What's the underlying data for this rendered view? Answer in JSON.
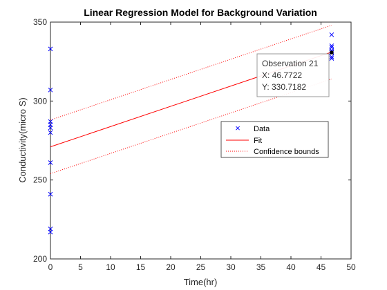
{
  "chart_data": {
    "type": "scatter",
    "title": "Linear Regression Model for Background Variation",
    "xlabel": "Time(hr)",
    "ylabel": "Conductivity(micro S)",
    "xlim": [
      0,
      50
    ],
    "ylim": [
      200,
      350
    ],
    "xticks": [
      0,
      5,
      10,
      15,
      20,
      25,
      30,
      35,
      40,
      45,
      50
    ],
    "yticks": [
      200,
      250,
      300,
      350
    ],
    "grid": false,
    "legend_position": "right-center",
    "series": [
      {
        "name": "Data",
        "marker": "x",
        "color": "#0000ff",
        "points": [
          [
            0,
            333
          ],
          [
            0,
            307
          ],
          [
            0,
            287
          ],
          [
            0,
            285
          ],
          [
            0,
            283
          ],
          [
            0,
            280
          ],
          [
            0,
            261
          ],
          [
            0,
            241
          ],
          [
            0,
            219
          ],
          [
            0,
            217
          ],
          [
            46.77,
            342
          ],
          [
            46.77,
            335
          ],
          [
            46.77,
            334
          ],
          [
            46.77,
            332
          ],
          [
            46.77,
            331
          ],
          [
            46.77,
            330.7182
          ],
          [
            46.77,
            328
          ],
          [
            46.77,
            327
          ]
        ]
      },
      {
        "name": "Fit",
        "style": "solid",
        "color": "#ff0000",
        "x": [
          0,
          46.77
        ],
        "y": [
          271,
          331
        ]
      },
      {
        "name": "Confidence bounds",
        "style": "dotted",
        "color": "#ff0000",
        "upper": {
          "x": [
            0,
            46.77
          ],
          "y": [
            288,
            348
          ]
        },
        "lower": {
          "x": [
            0,
            46.77
          ],
          "y": [
            254,
            314
          ]
        }
      }
    ],
    "datatip": {
      "title": "Observation 21",
      "x_text": "X: 46.7722",
      "y_text": "Y: 330.7182",
      "x": 46.7722,
      "y": 330.7182
    }
  }
}
